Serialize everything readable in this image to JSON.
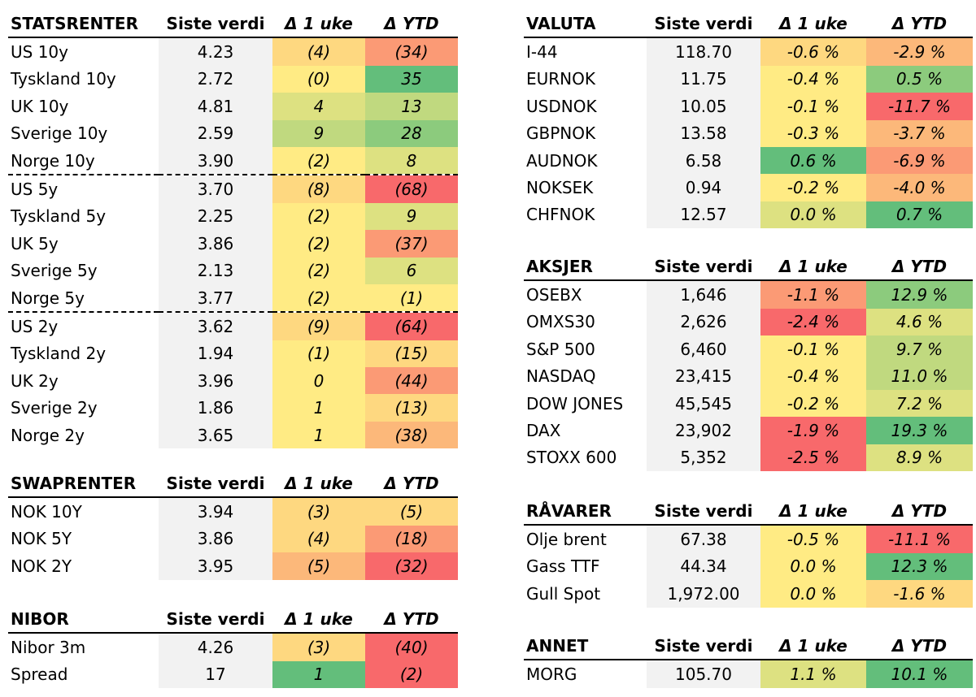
{
  "colors": {
    "dark_green": "#63be7b",
    "green": "#8ccb7d",
    "light_green": "#c0d97f",
    "yellow_green": "#dde181",
    "yellow": "#ffeb84",
    "light_orange": "#fed880",
    "orange": "#fcb87a",
    "dark_orange": "#fb9a75",
    "red": "#f8696b",
    "value_bg": "#f2f2f2"
  },
  "tables": [
    {
      "id": "statsrenter",
      "headers": [
        "STATSRENTER",
        "Siste verdi",
        "Δ 1 uke",
        "Δ YTD"
      ],
      "rows": [
        {
          "name": "US 10y",
          "value": "4.23",
          "w": "(4)",
          "w_color": "light_orange",
          "ytd": "(34)",
          "ytd_color": "dark_orange"
        },
        {
          "name": "Tyskland 10y",
          "value": "2.72",
          "w": "(0)",
          "w_color": "yellow",
          "ytd": "35",
          "ytd_color": "dark_green"
        },
        {
          "name": "UK 10y",
          "value": "4.81",
          "w": "4",
          "w_color": "yellow_green",
          "ytd": "13",
          "ytd_color": "light_green"
        },
        {
          "name": "Sverige 10y",
          "value": "2.59",
          "w": "9",
          "w_color": "light_green",
          "ytd": "28",
          "ytd_color": "green"
        },
        {
          "name": "Norge 10y",
          "value": "3.90",
          "w": "(2)",
          "w_color": "yellow",
          "ytd": "8",
          "ytd_color": "yellow_green"
        },
        {
          "name": "US 5y",
          "value": "3.70",
          "w": "(8)",
          "w_color": "light_orange",
          "ytd": "(68)",
          "ytd_color": "red",
          "sep": true
        },
        {
          "name": "Tyskland 5y",
          "value": "2.25",
          "w": "(2)",
          "w_color": "yellow",
          "ytd": "9",
          "ytd_color": "yellow_green"
        },
        {
          "name": "UK 5y",
          "value": "3.86",
          "w": "(2)",
          "w_color": "yellow",
          "ytd": "(37)",
          "ytd_color": "dark_orange"
        },
        {
          "name": "Sverige 5y",
          "value": "2.13",
          "w": "(2)",
          "w_color": "yellow",
          "ytd": "6",
          "ytd_color": "yellow_green"
        },
        {
          "name": "Norge 5y",
          "value": "3.77",
          "w": "(2)",
          "w_color": "yellow",
          "ytd": "(1)",
          "ytd_color": "yellow"
        },
        {
          "name": "US 2y",
          "value": "3.62",
          "w": "(9)",
          "w_color": "light_orange",
          "ytd": "(64)",
          "ytd_color": "red",
          "sep": true
        },
        {
          "name": "Tyskland 2y",
          "value": "1.94",
          "w": "(1)",
          "w_color": "yellow",
          "ytd": "(15)",
          "ytd_color": "light_orange"
        },
        {
          "name": "UK 2y",
          "value": "3.96",
          "w": "0",
          "w_color": "yellow",
          "ytd": "(44)",
          "ytd_color": "dark_orange"
        },
        {
          "name": "Sverige 2y",
          "value": "1.86",
          "w": "1",
          "w_color": "yellow",
          "ytd": "(13)",
          "ytd_color": "light_orange"
        },
        {
          "name": "Norge 2y",
          "value": "3.65",
          "w": "1",
          "w_color": "yellow",
          "ytd": "(38)",
          "ytd_color": "orange"
        }
      ]
    },
    {
      "id": "swaprenter",
      "headers": [
        "SWAPRENTER",
        "Siste verdi",
        "Δ 1 uke",
        "Δ YTD"
      ],
      "rows": [
        {
          "name": "NOK 10Y",
          "value": "3.94",
          "w": "(3)",
          "w_color": "light_orange",
          "ytd": "(5)",
          "ytd_color": "light_orange"
        },
        {
          "name": "NOK 5Y",
          "value": "3.86",
          "w": "(4)",
          "w_color": "light_orange",
          "ytd": "(18)",
          "ytd_color": "dark_orange"
        },
        {
          "name": "NOK 2Y",
          "value": "3.95",
          "w": "(5)",
          "w_color": "orange",
          "ytd": "(32)",
          "ytd_color": "red"
        }
      ]
    },
    {
      "id": "nibor",
      "headers": [
        "NIBOR",
        "Siste verdi",
        "Δ 1 uke",
        "Δ YTD"
      ],
      "rows": [
        {
          "name": "Nibor 3m",
          "value": "4.26",
          "w": "(3)",
          "w_color": "light_orange",
          "ytd": "(40)",
          "ytd_color": "red"
        },
        {
          "name": "Spread",
          "value": "17",
          "w": "1",
          "w_color": "dark_green",
          "ytd": "(2)",
          "ytd_color": "red"
        }
      ]
    },
    {
      "id": "valuta",
      "headers": [
        "VALUTA",
        "Siste verdi",
        "Δ 1 uke",
        "Δ YTD"
      ],
      "rows": [
        {
          "name": "I-44",
          "value": "118.70",
          "w": "-0.6 %",
          "w_color": "light_orange",
          "ytd": "-2.9 %",
          "ytd_color": "orange"
        },
        {
          "name": "EURNOK",
          "value": "11.75",
          "w": "-0.4 %",
          "w_color": "yellow",
          "ytd": "0.5 %",
          "ytd_color": "green"
        },
        {
          "name": "USDNOK",
          "value": "10.05",
          "w": "-0.1 %",
          "w_color": "yellow",
          "ytd": "-11.7 %",
          "ytd_color": "red"
        },
        {
          "name": "GBPNOK",
          "value": "13.58",
          "w": "-0.3 %",
          "w_color": "yellow",
          "ytd": "-3.7 %",
          "ytd_color": "orange"
        },
        {
          "name": "AUDNOK",
          "value": "6.58",
          "w": "0.6 %",
          "w_color": "dark_green",
          "ytd": "-6.9 %",
          "ytd_color": "dark_orange"
        },
        {
          "name": "NOKSEK",
          "value": "0.94",
          "w": "-0.2 %",
          "w_color": "yellow",
          "ytd": "-4.0 %",
          "ytd_color": "orange"
        },
        {
          "name": "CHFNOK",
          "value": "12.57",
          "w": "0.0 %",
          "w_color": "yellow_green",
          "ytd": "0.7 %",
          "ytd_color": "dark_green"
        }
      ]
    },
    {
      "id": "aksjer",
      "headers": [
        "AKSJER",
        "Siste verdi",
        "Δ 1 uke",
        "Δ YTD"
      ],
      "rows": [
        {
          "name": "OSEBX",
          "value": "1,646",
          "w": "-1.1 %",
          "w_color": "dark_orange",
          "ytd": "12.9 %",
          "ytd_color": "green"
        },
        {
          "name": "OMXS30",
          "value": "2,626",
          "w": "-2.4 %",
          "w_color": "red",
          "ytd": "4.6 %",
          "ytd_color": "yellow_green"
        },
        {
          "name": "S&P 500",
          "value": "6,460",
          "w": "-0.1 %",
          "w_color": "yellow",
          "ytd": "9.7 %",
          "ytd_color": "light_green"
        },
        {
          "name": "NASDAQ",
          "value": "23,415",
          "w": "-0.4 %",
          "w_color": "yellow",
          "ytd": "11.0 %",
          "ytd_color": "light_green"
        },
        {
          "name": "DOW JONES",
          "value": "45,545",
          "w": "-0.2 %",
          "w_color": "yellow",
          "ytd": "7.2 %",
          "ytd_color": "yellow_green"
        },
        {
          "name": "DAX",
          "value": "23,902",
          "w": "-1.9 %",
          "w_color": "red",
          "ytd": "19.3 %",
          "ytd_color": "dark_green"
        },
        {
          "name": "STOXX 600",
          "value": "5,352",
          "w": "-2.5 %",
          "w_color": "red",
          "ytd": "8.9 %",
          "ytd_color": "yellow_green"
        }
      ]
    },
    {
      "id": "ravarer",
      "headers": [
        "RÅVARER",
        "Siste verdi",
        "Δ 1 uke",
        "Δ YTD"
      ],
      "rows": [
        {
          "name": "Olje brent",
          "value": "67.38",
          "w": "-0.5 %",
          "w_color": "yellow",
          "ytd": "-11.1 %",
          "ytd_color": "red"
        },
        {
          "name": "Gass TTF",
          "value": "44.34",
          "w": "0.0 %",
          "w_color": "yellow",
          "ytd": "12.3 %",
          "ytd_color": "dark_green"
        },
        {
          "name": "Gull Spot",
          "value": "1,972.00",
          "w": "0.0 %",
          "w_color": "yellow",
          "ytd": "-1.6 %",
          "ytd_color": "light_orange"
        }
      ]
    },
    {
      "id": "annet",
      "headers": [
        "ANNET",
        "Siste verdi",
        "Δ 1 uke",
        "Δ YTD"
      ],
      "rows": [
        {
          "name": "MORG",
          "value": "105.70",
          "w": "1.1 %",
          "w_color": "yellow_green",
          "ytd": "10.1 %",
          "ytd_color": "dark_green"
        }
      ]
    }
  ]
}
